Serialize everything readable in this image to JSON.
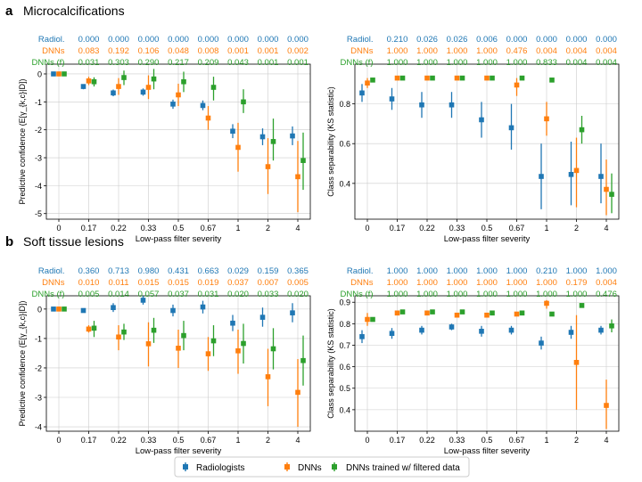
{
  "colors": {
    "radiologists": "#1f77b4",
    "dnns": "#ff7f0e",
    "dnns_filtered": "#2ca02c",
    "grid": "#cccccc",
    "axis": "#000000"
  },
  "sections": [
    {
      "letter": "a",
      "title": "Microcalcifications"
    },
    {
      "letter": "b",
      "title": "Soft tissue lesions"
    }
  ],
  "legend": {
    "entries": [
      "Radiologists",
      "DNNs",
      "DNNs trained w/ filtered data"
    ],
    "position": "bottom-center"
  },
  "chart_data": [
    {
      "id": "a-left",
      "type": "scatter",
      "xlabel": "Low-pass filter severity",
      "ylabel": "Predictive confidence (E[γ_{k,c}|D])",
      "categories": [
        "0",
        "0.17",
        "0.22",
        "0.33",
        "0.5",
        "0.67",
        "1",
        "2",
        "4"
      ],
      "ylim": [
        -5.2,
        0.35
      ],
      "yticks": [
        0,
        -1,
        -2,
        -3,
        -4,
        -5
      ],
      "grid": true,
      "pvalue_rows": [
        {
          "label": "Radiol.",
          "values": [
            "0.000",
            "0.000",
            "0.000",
            "0.000",
            "0.000",
            "0.000",
            "0.000",
            "0.000"
          ]
        },
        {
          "label": "DNNs",
          "values": [
            "0.083",
            "0.192",
            "0.106",
            "0.048",
            "0.008",
            "0.001",
            "0.001",
            "0.002"
          ]
        },
        {
          "label": "DNNs (f)",
          "values": [
            "0.031",
            "0.303",
            "0.290",
            "0.217",
            "0.209",
            "0.043",
            "0.001",
            "0.001"
          ]
        }
      ],
      "series": [
        {
          "name": "Radiologists",
          "values": [
            0,
            -0.45,
            -0.68,
            -0.65,
            -1.08,
            -1.13,
            -2.05,
            -2.25,
            -2.22
          ],
          "lower": [
            0,
            -0.55,
            -0.8,
            -0.78,
            -1.25,
            -1.3,
            -2.3,
            -2.55,
            -2.55
          ],
          "upper": [
            0,
            -0.37,
            -0.56,
            -0.52,
            -0.92,
            -0.95,
            -1.8,
            -1.95,
            -1.88
          ]
        },
        {
          "name": "DNNs",
          "values": [
            0,
            -0.25,
            -0.45,
            -0.48,
            -0.75,
            -1.58,
            -2.63,
            -3.32,
            -3.68
          ],
          "lower": [
            0,
            -0.4,
            -0.75,
            -0.9,
            -1.15,
            -2.0,
            -3.5,
            -4.3,
            -4.95
          ],
          "upper": [
            0,
            -0.1,
            -0.15,
            -0.05,
            -0.35,
            -1.15,
            -1.75,
            -2.3,
            -2.4
          ]
        },
        {
          "name": "DNNs trained w/ filtered data",
          "values": [
            0,
            -0.28,
            -0.13,
            -0.18,
            -0.28,
            -0.48,
            -1.0,
            -2.42,
            -3.1
          ],
          "lower": [
            0,
            -0.45,
            -0.4,
            -0.55,
            -0.65,
            -0.95,
            -1.4,
            -3.1,
            -4.15
          ],
          "upper": [
            0,
            -0.12,
            0.12,
            0.18,
            0.08,
            -0.1,
            -0.55,
            -1.6,
            -2.1
          ]
        }
      ]
    },
    {
      "id": "a-right",
      "type": "scatter",
      "xlabel": "Low-pass filter severity",
      "ylabel": "Class separability (KS statistic)",
      "categories": [
        "0",
        "0.17",
        "0.22",
        "0.33",
        "0.5",
        "0.67",
        "1",
        "2",
        "4"
      ],
      "ylim": [
        0.22,
        1.0
      ],
      "yticks": [
        0.4,
        0.6,
        0.8
      ],
      "grid": true,
      "pvalue_rows": [
        {
          "label": "Radiol.",
          "values": [
            "0.210",
            "0.026",
            "0.026",
            "0.006",
            "0.000",
            "0.000",
            "0.000",
            "0.000"
          ]
        },
        {
          "label": "DNNs",
          "values": [
            "1.000",
            "1.000",
            "1.000",
            "1.000",
            "0.476",
            "0.004",
            "0.004",
            "0.004"
          ]
        },
        {
          "label": "DNNs (f)",
          "values": [
            "1.000",
            "1.000",
            "1.000",
            "1.000",
            "1.000",
            "0.833",
            "0.004",
            "0.004"
          ]
        }
      ],
      "series": [
        {
          "name": "Radiologists",
          "values": [
            0.855,
            0.825,
            0.795,
            0.795,
            0.72,
            0.68,
            0.435,
            0.445,
            0.435
          ],
          "lower": [
            0.81,
            0.77,
            0.73,
            0.73,
            0.63,
            0.57,
            0.27,
            0.29,
            0.3
          ],
          "upper": [
            0.9,
            0.88,
            0.86,
            0.86,
            0.81,
            0.8,
            0.6,
            0.61,
            0.6
          ]
        },
        {
          "name": "DNNs",
          "values": [
            0.905,
            0.93,
            0.93,
            0.93,
            0.93,
            0.895,
            0.725,
            0.465,
            0.37
          ],
          "lower": [
            0.88,
            0.93,
            0.93,
            0.93,
            0.93,
            0.84,
            0.64,
            0.28,
            0.24
          ],
          "upper": [
            0.93,
            0.93,
            0.93,
            0.93,
            0.93,
            0.93,
            0.81,
            0.63,
            0.52
          ]
        },
        {
          "name": "DNNs trained w/ filtered data",
          "values": [
            0.92,
            0.93,
            0.93,
            0.93,
            0.93,
            0.93,
            0.92,
            0.67,
            0.345
          ],
          "lower": [
            0.92,
            0.93,
            0.93,
            0.93,
            0.93,
            0.93,
            0.92,
            0.6,
            0.25
          ],
          "upper": [
            0.92,
            0.93,
            0.93,
            0.93,
            0.93,
            0.93,
            0.92,
            0.74,
            0.45
          ]
        }
      ]
    },
    {
      "id": "b-left",
      "type": "scatter",
      "xlabel": "Low-pass filter severity",
      "ylabel": "Predictive confidence (E[γ_{k,c}|D])",
      "categories": [
        "0",
        "0.17",
        "0.22",
        "0.33",
        "0.5",
        "0.67",
        "1",
        "2",
        "4"
      ],
      "ylim": [
        -4.15,
        0.45
      ],
      "yticks": [
        0,
        -1,
        -2,
        -3,
        -4
      ],
      "grid": true,
      "pvalue_rows": [
        {
          "label": "Radiol.",
          "values": [
            "0.360",
            "0.713",
            "0.980",
            "0.431",
            "0.663",
            "0.029",
            "0.159",
            "0.365"
          ]
        },
        {
          "label": "DNNs",
          "values": [
            "0.010",
            "0.011",
            "0.015",
            "0.015",
            "0.019",
            "0.037",
            "0.007",
            "0.005"
          ]
        },
        {
          "label": "DNNs (f)",
          "values": [
            "0.005",
            "0.014",
            "0.057",
            "0.037",
            "0.031",
            "0.020",
            "0.033",
            "0.020"
          ]
        }
      ],
      "series": [
        {
          "name": "Radiologists",
          "values": [
            0,
            -0.05,
            0.05,
            0.3,
            -0.05,
            0.07,
            -0.48,
            -0.28,
            -0.13
          ],
          "lower": [
            0,
            -0.12,
            -0.1,
            0.15,
            -0.25,
            -0.15,
            -0.75,
            -0.6,
            -0.45
          ],
          "upper": [
            0,
            0.02,
            0.2,
            0.45,
            0.15,
            0.28,
            -0.2,
            0.05,
            0.2
          ]
        },
        {
          "name": "DNNs",
          "values": [
            0,
            -0.68,
            -0.95,
            -1.18,
            -1.33,
            -1.52,
            -1.42,
            -2.3,
            -2.83
          ],
          "lower": [
            0,
            -0.8,
            -1.4,
            -1.95,
            -2.0,
            -2.1,
            -2.2,
            -3.3,
            -4.0
          ],
          "upper": [
            0,
            -0.55,
            -0.55,
            -0.45,
            -0.7,
            -0.95,
            -0.7,
            -1.35,
            -1.7
          ]
        },
        {
          "name": "DNNs trained w/ filtered data",
          "values": [
            0,
            -0.65,
            -0.78,
            -0.72,
            -0.9,
            -1.08,
            -1.17,
            -1.35,
            -1.75
          ],
          "lower": [
            0,
            -0.95,
            -1.05,
            -1.15,
            -1.4,
            -1.6,
            -1.85,
            -2.05,
            -2.6
          ],
          "upper": [
            0,
            -0.4,
            -0.5,
            -0.3,
            -0.4,
            -0.55,
            -0.5,
            -0.65,
            -0.9
          ]
        }
      ]
    },
    {
      "id": "b-right",
      "type": "scatter",
      "xlabel": "Low-pass filter severity",
      "ylabel": "Class separability (KS statistic)",
      "categories": [
        "0",
        "0.17",
        "0.22",
        "0.33",
        "0.5",
        "0.67",
        "1",
        "2",
        "4"
      ],
      "ylim": [
        0.3,
        0.93
      ],
      "yticks": [
        0.4,
        0.5,
        0.6,
        0.7,
        0.8,
        0.9
      ],
      "grid": true,
      "pvalue_rows": [
        {
          "label": "Radiol.",
          "values": [
            "1.000",
            "1.000",
            "1.000",
            "1.000",
            "1.000",
            "0.210",
            "1.000",
            "1.000"
          ]
        },
        {
          "label": "DNNs",
          "values": [
            "1.000",
            "1.000",
            "1.000",
            "1.000",
            "1.000",
            "1.000",
            "0.179",
            "0.004"
          ]
        },
        {
          "label": "DNNs (f)",
          "values": [
            "1.000",
            "1.000",
            "1.000",
            "1.000",
            "1.000",
            "1.000",
            "1.000",
            "0.476"
          ]
        }
      ],
      "series": [
        {
          "name": "Radiologists",
          "values": [
            0.74,
            0.755,
            0.77,
            0.785,
            0.765,
            0.77,
            0.71,
            0.76,
            0.77
          ],
          "lower": [
            0.71,
            0.73,
            0.75,
            0.77,
            0.74,
            0.75,
            0.68,
            0.73,
            0.75
          ],
          "upper": [
            0.77,
            0.78,
            0.79,
            0.8,
            0.79,
            0.79,
            0.74,
            0.79,
            0.79
          ]
        },
        {
          "name": "DNNs",
          "values": [
            0.82,
            0.85,
            0.85,
            0.84,
            0.84,
            0.845,
            0.895,
            0.62,
            0.42
          ],
          "lower": [
            0.79,
            0.85,
            0.85,
            0.83,
            0.83,
            0.84,
            0.87,
            0.4,
            0.31
          ],
          "upper": [
            0.85,
            0.85,
            0.85,
            0.85,
            0.85,
            0.85,
            0.91,
            0.84,
            0.54
          ]
        },
        {
          "name": "DNNs trained w/ filtered data",
          "values": [
            0.82,
            0.855,
            0.855,
            0.855,
            0.85,
            0.85,
            0.845,
            0.885,
            0.79
          ],
          "lower": [
            0.82,
            0.855,
            0.855,
            0.855,
            0.85,
            0.85,
            0.845,
            0.885,
            0.76
          ],
          "upper": [
            0.82,
            0.855,
            0.855,
            0.855,
            0.85,
            0.85,
            0.845,
            0.885,
            0.82
          ]
        }
      ]
    }
  ]
}
